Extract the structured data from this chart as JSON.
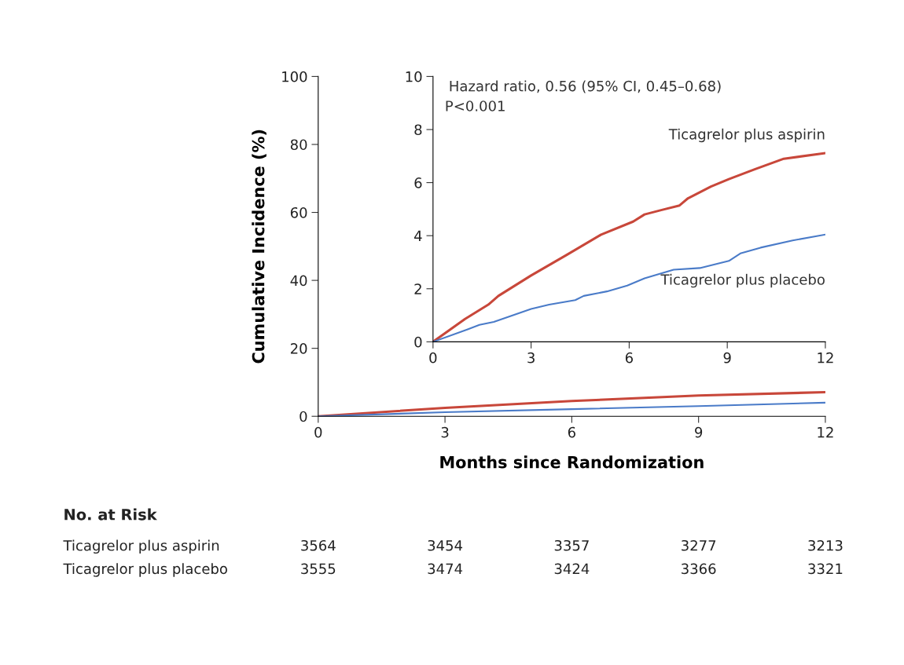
{
  "chart_data": [
    {
      "type": "line",
      "xlabel": "Months since Randomization",
      "ylabel": "Cumulative Incidence (%)",
      "xlim": [
        0,
        12
      ],
      "xticks": [
        0,
        3,
        6,
        9,
        12
      ],
      "ylim": [
        0,
        100
      ],
      "yticks": [
        0,
        20,
        40,
        60,
        80,
        100
      ],
      "grid": false,
      "legend": false,
      "series": [
        {
          "color": "#c8473a",
          "x": [
            0,
            3,
            6,
            9,
            12
          ],
          "values": [
            0,
            2.5,
            4.5,
            6.1,
            7.1
          ]
        },
        {
          "color": "#4a7bc8",
          "x": [
            0,
            3,
            6,
            9,
            12
          ],
          "values": [
            0,
            1.2,
            2.1,
            3.0,
            4.0
          ]
        }
      ],
      "annotations": [
        "No. at Risk",
        "Ticagrelor plus aspirin",
        "3564",
        "3454",
        "3357",
        "3277",
        "3213",
        "Ticagrelor plus placebo",
        "3555",
        "3474",
        "3424",
        "3366",
        "3321"
      ]
    },
    {
      "type": "line",
      "xlim": [
        0,
        12
      ],
      "xticks": [
        0,
        3,
        6,
        9,
        12
      ],
      "ylim": [
        0,
        10
      ],
      "yticks": [
        0,
        2,
        4,
        6,
        8,
        10
      ],
      "grid": false,
      "legend": false,
      "series": [
        {
          "name": "Ticagrelor plus aspirin",
          "color": "#c8473a",
          "x": [
            0,
            0.98,
            1.69,
            2.0,
            3.0,
            4.08,
            5.14,
            6.12,
            6.47,
            7.0,
            7.54,
            7.8,
            8.5,
            9.05,
            9.84,
            10.73,
            12
          ],
          "values": [
            0,
            0.86,
            1.4,
            1.73,
            2.5,
            3.27,
            4.04,
            4.53,
            4.8,
            4.97,
            5.14,
            5.41,
            5.85,
            6.13,
            6.5,
            6.9,
            7.11
          ]
        },
        {
          "name": "Ticagrelor plus placebo",
          "color": "#4a7bc8",
          "x": [
            0,
            1.06,
            1.42,
            1.86,
            3.0,
            3.55,
            4.35,
            4.61,
            5.32,
            5.94,
            6.47,
            7.36,
            8.16,
            9.05,
            9.4,
            10.02,
            11.0,
            12
          ],
          "values": [
            0,
            0.47,
            0.64,
            0.75,
            1.24,
            1.4,
            1.57,
            1.73,
            1.9,
            2.12,
            2.39,
            2.72,
            2.78,
            3.05,
            3.33,
            3.55,
            3.82,
            4.04
          ]
        }
      ],
      "annotations": [
        "Hazard ratio, 0.56 (95% CI, 0.45–0.68)",
        "P<0.001"
      ]
    }
  ]
}
